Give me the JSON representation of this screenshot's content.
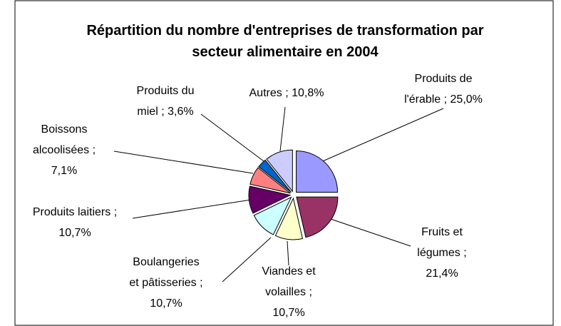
{
  "chart_data": {
    "type": "pie",
    "title": "Répartition du nombre d'entreprises de transformation par secteur alimentaire en 2004",
    "categories": [
      "Produits de l'érable",
      "Fruits et légumes",
      "Viandes et volailles",
      "Boulangeries et pâtisseries",
      "Produits laitiers",
      "Boissons alcoolisées",
      "Produits du miel",
      "Autres"
    ],
    "values": [
      25.0,
      21.4,
      10.7,
      10.7,
      10.7,
      7.1,
      3.6,
      10.8
    ],
    "value_labels": [
      "25,0%",
      "21,4%",
      "10,7%",
      "10,7%",
      "10,7%",
      "7,1%",
      "3,6%",
      "10,8%"
    ],
    "label_separator": ";",
    "colors": [
      "#9999ff",
      "#993366",
      "#ffffcc",
      "#ccffff",
      "#660066",
      "#ff8080",
      "#0066cc",
      "#ccccff"
    ]
  }
}
